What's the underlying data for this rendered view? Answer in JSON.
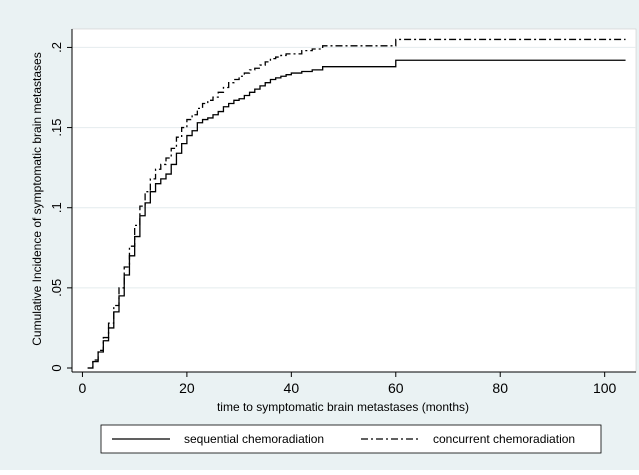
{
  "chart_data": {
    "type": "line",
    "title": "",
    "xlabel": "time to symptomatic brain metastases (months)",
    "ylabel": "Cumulative Incidence of symptomatic brain metastases",
    "xlim": [
      -2,
      106
    ],
    "ylim": [
      -0.0025,
      0.2115
    ],
    "x_ticks": [
      0,
      20,
      40,
      60,
      80,
      100
    ],
    "x_tick_labels": [
      "0",
      "20",
      "40",
      "60",
      "80",
      "100"
    ],
    "y_ticks": [
      0,
      0.05,
      0.1,
      0.15,
      0.2
    ],
    "y_tick_labels": [
      "0",
      ".05",
      ".1",
      ".15",
      ".2"
    ],
    "grid": "horizontal",
    "legend_position": "bottom",
    "series": [
      {
        "name": "sequential chemoradiation",
        "style": "solid",
        "color": "#000000",
        "x": [
          1,
          2,
          3,
          4,
          5,
          6,
          7,
          8,
          9,
          10,
          11,
          12,
          13,
          14,
          15,
          16,
          17,
          18,
          19,
          20,
          21,
          22,
          23,
          24,
          25,
          26,
          27,
          28,
          29,
          30,
          31,
          32,
          33,
          34,
          35,
          36,
          37,
          38,
          39,
          40,
          42,
          44,
          46,
          50,
          55,
          59,
          60,
          65,
          70,
          80,
          90,
          100,
          104
        ],
        "y": [
          0,
          0.004,
          0.01,
          0.017,
          0.025,
          0.035,
          0.045,
          0.058,
          0.07,
          0.082,
          0.095,
          0.103,
          0.11,
          0.115,
          0.118,
          0.121,
          0.127,
          0.134,
          0.14,
          0.145,
          0.148,
          0.153,
          0.155,
          0.156,
          0.158,
          0.16,
          0.163,
          0.165,
          0.167,
          0.168,
          0.17,
          0.172,
          0.174,
          0.176,
          0.178,
          0.18,
          0.181,
          0.182,
          0.183,
          0.184,
          0.185,
          0.186,
          0.188,
          0.188,
          0.188,
          0.188,
          0.192,
          0.192,
          0.192,
          0.192,
          0.192,
          0.192,
          0.192
        ]
      },
      {
        "name": "concurrent chemoradiation",
        "style": "dash",
        "color": "#000000",
        "x": [
          1,
          2,
          3,
          4,
          5,
          6,
          7,
          8,
          9,
          10,
          11,
          12,
          13,
          14,
          15,
          16,
          17,
          18,
          19,
          20,
          21,
          22,
          23,
          24,
          25,
          26,
          27,
          28,
          29,
          30,
          31,
          32,
          33,
          34,
          35,
          36,
          37,
          38,
          39,
          40,
          42,
          44,
          46,
          50,
          55,
          59,
          60,
          65,
          70,
          80,
          90,
          100,
          104
        ],
        "y": [
          0,
          0.005,
          0.011,
          0.019,
          0.028,
          0.039,
          0.05,
          0.063,
          0.076,
          0.089,
          0.101,
          0.11,
          0.118,
          0.124,
          0.127,
          0.131,
          0.137,
          0.144,
          0.15,
          0.155,
          0.158,
          0.162,
          0.165,
          0.167,
          0.169,
          0.172,
          0.175,
          0.178,
          0.18,
          0.182,
          0.184,
          0.186,
          0.187,
          0.189,
          0.191,
          0.193,
          0.194,
          0.195,
          0.196,
          0.196,
          0.198,
          0.199,
          0.201,
          0.201,
          0.201,
          0.201,
          0.205,
          0.205,
          0.205,
          0.205,
          0.205,
          0.205,
          0.205
        ]
      }
    ]
  },
  "colors": {
    "outer_background": "#eaf2f3",
    "plot_background": "#ffffff",
    "gridline": "#e4ecee",
    "line": "#000000"
  }
}
